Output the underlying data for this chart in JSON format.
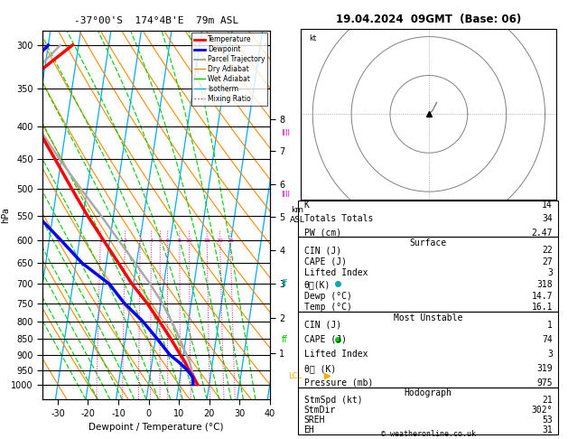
{
  "title_left": "-37°00'S  174°4B'E  79m ASL",
  "title_right": "19.04.2024  09GMT  (Base: 06)",
  "xlabel": "Dewpoint / Temperature (°C)",
  "pressure_ticks": [
    300,
    350,
    400,
    450,
    500,
    550,
    600,
    650,
    700,
    750,
    800,
    850,
    900,
    950,
    1000
  ],
  "xtick_temps": [
    -30,
    -20,
    -10,
    0,
    10,
    20,
    30,
    40
  ],
  "xlim_temp": [
    -35,
    40
  ],
  "p_min": 285,
  "p_max": 1055,
  "skew": 14.0,
  "temperature_pressure": [
    1000,
    975,
    950,
    925,
    900,
    850,
    800,
    750,
    700,
    650,
    600,
    550,
    500,
    450,
    400,
    350,
    300
  ],
  "temperature_C": [
    16.1,
    14.5,
    12.5,
    11.0,
    9.0,
    5.0,
    0.5,
    -4.5,
    -10.5,
    -16.0,
    -22.0,
    -28.5,
    -35.0,
    -42.0,
    -50.0,
    -58.0,
    -42.0
  ],
  "dewpoint_C": [
    14.7,
    14.2,
    12.0,
    9.0,
    5.5,
    0.5,
    -5.0,
    -12.0,
    -18.0,
    -28.0,
    -36.0,
    -45.0,
    -51.0,
    -55.0,
    -58.0,
    -62.0,
    -50.0
  ],
  "parcel_pressure": [
    975,
    950,
    925,
    900,
    850,
    800,
    750,
    700,
    650,
    600,
    550,
    500,
    450,
    400,
    350,
    300
  ],
  "parcel_C": [
    14.7,
    13.5,
    12.5,
    11.0,
    8.0,
    4.5,
    0.5,
    -4.5,
    -10.5,
    -17.0,
    -24.0,
    -32.0,
    -40.5,
    -49.5,
    -58.0,
    -46.0
  ],
  "km_data": [
    {
      "km": 8,
      "p": 390
    },
    {
      "km": 7,
      "p": 437
    },
    {
      "km": 6,
      "p": 492
    },
    {
      "km": 5,
      "p": 552
    },
    {
      "km": 4,
      "p": 621
    },
    {
      "km": 3,
      "p": 700
    },
    {
      "km": 2,
      "p": 791
    },
    {
      "km": 1,
      "p": 894
    }
  ],
  "mixing_ratios": [
    1,
    2,
    3,
    4,
    5,
    6,
    8,
    10,
    15,
    20,
    25
  ],
  "dry_adiabat_thetas_C": [
    -30,
    -20,
    -10,
    0,
    10,
    20,
    30,
    40,
    50,
    60,
    70,
    80,
    90,
    100,
    110,
    120,
    130,
    140
  ],
  "wet_adiabat_starts_C": [
    -20,
    -16,
    -12,
    -8,
    -4,
    0,
    4,
    8,
    12,
    16,
    20,
    24,
    28,
    32,
    36
  ],
  "isotherm_temps": [
    -50,
    -40,
    -30,
    -20,
    -10,
    0,
    10,
    20,
    30,
    40
  ],
  "isotherm_color": "#00aaff",
  "dry_adiabat_color": "#ff8800",
  "wet_adiabat_color": "#00cc00",
  "mixing_ratio_color": "#ee00aa",
  "temp_color": "#ff0000",
  "dewp_color": "#0000ff",
  "parcel_color": "#aaaaaa",
  "wind_markers": [
    {
      "p": 410,
      "color": "#cc00cc",
      "text": "IIII",
      "dot_color": "#cc00cc"
    },
    {
      "p": 510,
      "color": "#cc00cc",
      "text": "IIII",
      "dot_color": "#cc00cc"
    },
    {
      "p": 700,
      "color": "#00aaaa",
      "text": "ff",
      "dot_color": "#00aaaa"
    },
    {
      "p": 853,
      "color": "#00cc00",
      "text": "ff",
      "dot_color": "#00cc00"
    },
    {
      "p": 970,
      "color": "#ffaa00",
      "text": "LCL",
      "dot_color": "#ffaa00"
    }
  ],
  "right_panel": {
    "K": "14",
    "Totals Totals": "34",
    "PW (cm)": "2.47",
    "surf_temp": "16.1",
    "surf_dewp": "14.7",
    "surf_the": "318",
    "surf_li": "3",
    "surf_cape": "27",
    "surf_cin": "22",
    "mu_pressure": "975",
    "mu_the": "319",
    "mu_li": "3",
    "mu_cape": "74",
    "mu_cin": "1",
    "hodo_EH": "31",
    "hodo_SREH": "53",
    "StmDir": "302°",
    "StmSpd": "21"
  }
}
